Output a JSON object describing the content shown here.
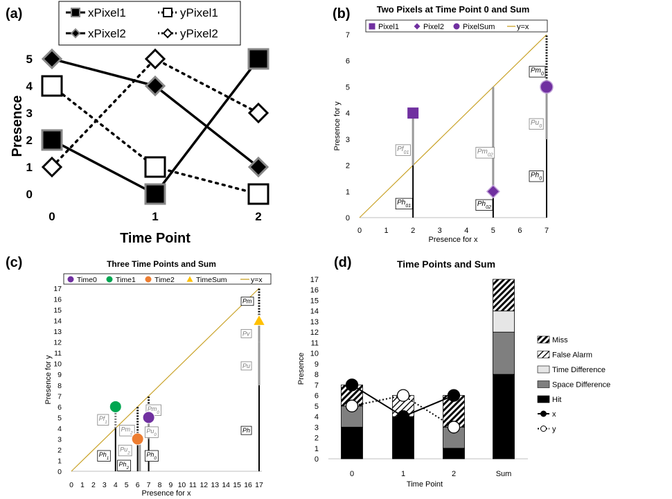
{
  "panels": {
    "a": {
      "letter": "(a)"
    },
    "b": {
      "letter": "(b)"
    },
    "c": {
      "letter": "(c)"
    },
    "d": {
      "letter": "(d)"
    }
  },
  "chart_data": [
    {
      "id": "a",
      "type": "line",
      "title": "",
      "xlabel": "Time Point",
      "ylabel": "Presence",
      "x": [
        0,
        1,
        2
      ],
      "xticks": [
        "0",
        "1",
        "2"
      ],
      "yticks": [
        "0",
        "1",
        "2",
        "3",
        "4",
        "5"
      ],
      "ylim": [
        0,
        5
      ],
      "grid": false,
      "legend_position": "top",
      "series": [
        {
          "name": "xPixel1",
          "values": [
            2,
            0,
            5
          ],
          "marker": "square",
          "fill": "#000000",
          "stroke": "#888888",
          "line": "solid"
        },
        {
          "name": "yPixel1",
          "values": [
            4,
            1,
            0
          ],
          "marker": "square",
          "fill": "#ffffff",
          "stroke": "#000000",
          "line": "dotted"
        },
        {
          "name": "xPixel2",
          "values": [
            5,
            4,
            1
          ],
          "marker": "diamond",
          "fill": "#000000",
          "stroke": "#888888",
          "line": "solid"
        },
        {
          "name": "yPixel2",
          "values": [
            1,
            5,
            3
          ],
          "marker": "diamond",
          "fill": "#ffffff",
          "stroke": "#000000",
          "line": "dotted"
        }
      ]
    },
    {
      "id": "b",
      "type": "scatter",
      "title": "Two Pixels at Time Point 0 and Sum",
      "xlabel": "Presence for x",
      "ylabel": "Presence for y",
      "xticks": [
        "0",
        "1",
        "2",
        "3",
        "4",
        "5",
        "6",
        "7"
      ],
      "yticks": [
        "0",
        "1",
        "2",
        "3",
        "4",
        "5",
        "6",
        "7"
      ],
      "xlim": [
        0,
        7
      ],
      "ylim": [
        0,
        7
      ],
      "legend_position": "top",
      "legend": [
        {
          "name": "Pixel1",
          "marker": "square",
          "color": "#7030a0"
        },
        {
          "name": "Pixel2",
          "marker": "diamond",
          "color": "#7030a0"
        },
        {
          "name": "PixelSum",
          "marker": "circle",
          "color": "#7030a0"
        },
        {
          "name": "y=x",
          "marker": "line",
          "color": "#c9a227"
        }
      ],
      "points": [
        {
          "series": "Pixel1",
          "x": 2,
          "y": 4
        },
        {
          "series": "Pixel2",
          "x": 5,
          "y": 1
        },
        {
          "series": "PixelSum",
          "x": 7,
          "y": 5
        }
      ],
      "segments": [
        {
          "x": 2,
          "y0": 0,
          "y1": 2,
          "kind": "hit",
          "label": "Ph",
          "sub": "01",
          "label_y": 0.5
        },
        {
          "x": 2,
          "y0": 2,
          "y1": 4,
          "kind": "gray",
          "label": "Pf",
          "sub": "01",
          "label_y": 2.55
        },
        {
          "x": 5,
          "y0": 0,
          "y1": 1,
          "kind": "hit",
          "label": "Ph",
          "sub": "02",
          "label_y": 0.45
        },
        {
          "x": 5,
          "y0": 1,
          "y1": 5,
          "kind": "gray",
          "label": "Pm",
          "sub": "02",
          "label_y": 2.45
        },
        {
          "x": 7,
          "y0": 0,
          "y1": 3,
          "kind": "hit",
          "label": "Ph",
          "sub": "0",
          "label_y": 1.55
        },
        {
          "x": 7,
          "y0": 3,
          "y1": 5,
          "kind": "gray",
          "label": "Pu",
          "sub": "0",
          "label_y": 3.55
        },
        {
          "x": 7,
          "y0": 5,
          "y1": 7,
          "kind": "hatch",
          "label": "Pm",
          "sub": "0",
          "label_y": 5.55
        }
      ]
    },
    {
      "id": "c",
      "type": "scatter",
      "title": "Three Time Points and Sum",
      "xlabel": "Presence for x",
      "ylabel": "Presence for y",
      "xticks": [
        "0",
        "1",
        "2",
        "3",
        "4",
        "5",
        "6",
        "7",
        "8",
        "9",
        "10",
        "11",
        "12",
        "13",
        "14",
        "15",
        "16",
        "17"
      ],
      "yticks": [
        "0",
        "1",
        "2",
        "3",
        "4",
        "5",
        "6",
        "7",
        "8",
        "9",
        "10",
        "11",
        "12",
        "13",
        "14",
        "15",
        "16",
        "17"
      ],
      "xlim": [
        0,
        17
      ],
      "ylim": [
        0,
        17
      ],
      "legend_position": "top",
      "legend": [
        {
          "name": "Time0",
          "marker": "circle",
          "color": "#7030a0"
        },
        {
          "name": "Time1",
          "marker": "circle",
          "color": "#00a651"
        },
        {
          "name": "Time2",
          "marker": "circle",
          "color": "#ed7d31"
        },
        {
          "name": "TimeSum",
          "marker": "triangle",
          "color": "#ffc000"
        },
        {
          "name": "y=x",
          "marker": "line",
          "color": "#c9a227"
        }
      ],
      "points": [
        {
          "series": "Time0",
          "x": 7,
          "y": 5
        },
        {
          "series": "Time1",
          "x": 4,
          "y": 6
        },
        {
          "series": "Time2",
          "x": 6,
          "y": 3
        },
        {
          "series": "TimeSum",
          "x": 17,
          "y": 14
        }
      ],
      "segments": [
        {
          "x": 4,
          "y0": 0,
          "y1": 4,
          "kind": "hit",
          "label": "Ph",
          "sub": "1",
          "label_x": 3.5,
          "label_y": 1.35
        },
        {
          "x": 4,
          "y0": 4,
          "y1": 6,
          "kind": "hatch-gray",
          "label": "Pf",
          "sub": "1",
          "label_x": 3.5,
          "label_y": 4.7
        },
        {
          "x": 6,
          "y0": 0,
          "y1": 3,
          "kind": "hit",
          "label": "Ph",
          "sub": "2",
          "label_x": 5.3,
          "label_y": 0.45
        },
        {
          "x": 6,
          "y0": 3,
          "y1": 6,
          "kind": "hatch",
          "label": "Pm",
          "sub": "2",
          "label_x": 5.5,
          "label_y": 3.7
        },
        {
          "x": 6.2,
          "y0": 0,
          "y1": 3,
          "kind": "gray",
          "label": "Pu",
          "sub": "2",
          "label_x": 5.4,
          "label_y": 1.85
        },
        {
          "x": 7,
          "y0": 0,
          "y1": 3,
          "kind": "hit",
          "label": "Ph",
          "sub": "0",
          "label_x": 7.8,
          "label_y": 1.35
        },
        {
          "x": 7,
          "y0": 3,
          "y1": 5,
          "kind": "gray",
          "label": "Pu",
          "sub": "0",
          "label_x": 7.8,
          "label_y": 3.55
        },
        {
          "x": 7,
          "y0": 5,
          "y1": 7,
          "kind": "hatch",
          "label": "Pm",
          "sub": "0",
          "label_x": 7.9,
          "label_y": 5.6
        },
        {
          "x": 17,
          "y0": 0,
          "y1": 8,
          "kind": "hit",
          "label": "Ph",
          "sub": "",
          "label_x": 16.5,
          "label_y": 3.6
        },
        {
          "x": 17,
          "y0": 8,
          "y1": 12,
          "kind": "gray",
          "label": "Pu",
          "sub": "",
          "label_x": 16.5,
          "label_y": 9.6
        },
        {
          "x": 17,
          "y0": 12,
          "y1": 14,
          "kind": "gray",
          "label": "Pv",
          "sub": "",
          "label_x": 16.5,
          "label_y": 12.6
        },
        {
          "x": 17,
          "y0": 14,
          "y1": 17,
          "kind": "hatch",
          "label": "Pm",
          "sub": "",
          "label_x": 16.5,
          "label_y": 15.6
        }
      ]
    },
    {
      "id": "d",
      "type": "bar",
      "stacked": true,
      "title": "Time Points and Sum",
      "xlabel": "Time Point",
      "ylabel": "Presence",
      "categories": [
        "0",
        "1",
        "2",
        "Sum"
      ],
      "yticks": [
        "0",
        "1",
        "2",
        "3",
        "4",
        "5",
        "6",
        "7",
        "8",
        "9",
        "10",
        "11",
        "12",
        "13",
        "14",
        "15",
        "16",
        "17"
      ],
      "ylim": [
        0,
        17
      ],
      "legend_position": "right",
      "series": [
        {
          "name": "Hit",
          "values": [
            3,
            4,
            1,
            8
          ],
          "pattern": "solid-black"
        },
        {
          "name": "Space Difference",
          "values": [
            2,
            0,
            2,
            4
          ],
          "pattern": "solid-gray"
        },
        {
          "name": "Time Difference",
          "values": [
            0,
            0,
            0,
            2
          ],
          "pattern": "light-gray"
        },
        {
          "name": "False Alarm",
          "values": [
            0,
            2,
            0,
            0
          ],
          "pattern": "hatch-sparse"
        },
        {
          "name": "Miss",
          "values": [
            2,
            0,
            3,
            3
          ],
          "pattern": "hatch-dense"
        }
      ],
      "lines": [
        {
          "name": "x",
          "values": [
            7,
            4,
            6
          ],
          "fill": "#000000",
          "line": "solid"
        },
        {
          "name": "y",
          "values": [
            5,
            6,
            3
          ],
          "fill": "#ffffff",
          "line": "dotted"
        }
      ]
    }
  ]
}
